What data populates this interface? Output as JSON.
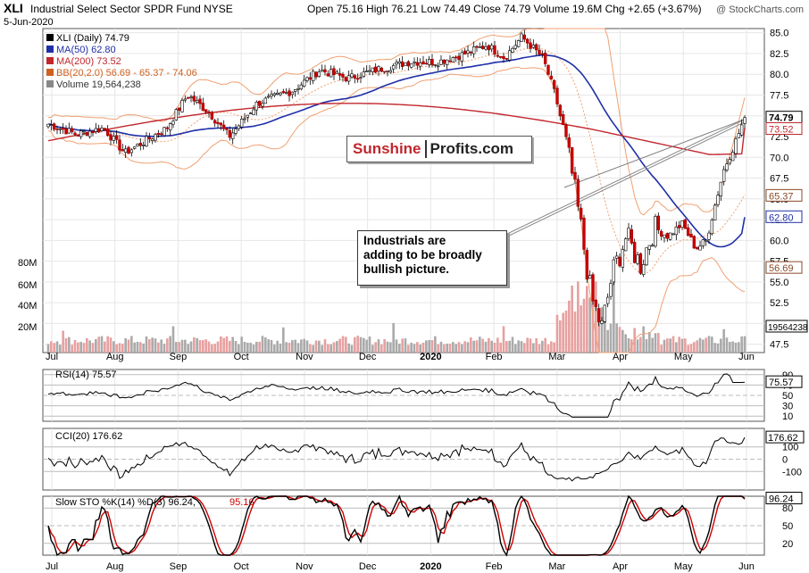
{
  "header": {
    "symbol": "XLI",
    "name": "Industrial Select Sector SPDR Fund",
    "exchange": "NYSE",
    "date": "5-Jun-2020",
    "quote": "Open 75.16  High 76.21  Low 74.49  Close 74.79  Volume 19.6M  Chg +2.65 (+3.67%)",
    "copyright": "@ StockCharts.com"
  },
  "legend": {
    "xli": "XLI (Daily) 74.79",
    "ma50": "MA(50) 62.80",
    "ma200": "MA(200) 73.52",
    "bb": "BB(20,2.0) 56.69 - 65.37 - 74.06",
    "volume": "Volume 19,564,238"
  },
  "brand": {
    "part1": "Sunshine",
    "part2": "Profits.com"
  },
  "annotation": {
    "line1": "Industrials are",
    "line2": "adding to be broadly",
    "line3": "bullish picture."
  },
  "colors": {
    "up": "#ffffff",
    "down": "#cc0000",
    "ma50": "#1f2fa8",
    "ma200": "#c1272d",
    "bb": "#f0a070",
    "vol_up": "#aaaaaa",
    "vol_down": "#e8a0a0",
    "rsi_fill_high": "#3c8a3c",
    "cci_fill_low": "#8a4a4a",
    "sto_k": "#000000",
    "sto_d": "#cc0000"
  },
  "chart_data": [
    {
      "type": "candlestick",
      "title": "XLI Industrial Select Sector SPDR Fund NYSE",
      "x_labels": [
        "Jul",
        "Aug",
        "Sep",
        "Oct",
        "Nov",
        "Dec",
        "2020",
        "Feb",
        "Mar",
        "Apr",
        "May",
        "Jun"
      ],
      "y_ticks": [
        47.5,
        50.0,
        52.5,
        55.0,
        57.5,
        60.0,
        62.5,
        65.0,
        67.5,
        70.0,
        72.5,
        75.0,
        77.5,
        80.0,
        82.5,
        85.0
      ],
      "ylim": [
        46.5,
        85.5
      ],
      "volume_ticks": [
        "20M",
        "40M",
        "60M",
        "80M"
      ],
      "price_keypoints": [
        {
          "x": 0,
          "y": 74.0
        },
        {
          "x": 0.04,
          "y": 72.8
        },
        {
          "x": 0.08,
          "y": 73.5
        },
        {
          "x": 0.11,
          "y": 70.5
        },
        {
          "x": 0.14,
          "y": 72.0
        },
        {
          "x": 0.17,
          "y": 73.5
        },
        {
          "x": 0.2,
          "y": 77.5
        },
        {
          "x": 0.23,
          "y": 75.5
        },
        {
          "x": 0.26,
          "y": 72.5
        },
        {
          "x": 0.3,
          "y": 76.5
        },
        {
          "x": 0.35,
          "y": 78.0
        },
        {
          "x": 0.39,
          "y": 80.5
        },
        {
          "x": 0.43,
          "y": 79.5
        },
        {
          "x": 0.47,
          "y": 80.5
        },
        {
          "x": 0.52,
          "y": 81.5
        },
        {
          "x": 0.56,
          "y": 81.5
        },
        {
          "x": 0.6,
          "y": 82.5
        },
        {
          "x": 0.63,
          "y": 83.5
        },
        {
          "x": 0.655,
          "y": 82.0
        },
        {
          "x": 0.68,
          "y": 84.5
        },
        {
          "x": 0.71,
          "y": 82.0
        },
        {
          "x": 0.73,
          "y": 77.0
        },
        {
          "x": 0.75,
          "y": 69.0
        },
        {
          "x": 0.765,
          "y": 61.5
        },
        {
          "x": 0.78,
          "y": 53.0
        },
        {
          "x": 0.795,
          "y": 49.5
        },
        {
          "x": 0.81,
          "y": 56.0
        },
        {
          "x": 0.83,
          "y": 60.5
        },
        {
          "x": 0.85,
          "y": 57.0
        },
        {
          "x": 0.87,
          "y": 61.5
        },
        {
          "x": 0.89,
          "y": 60.5
        },
        {
          "x": 0.91,
          "y": 62.0
        },
        {
          "x": 0.93,
          "y": 59.0
        },
        {
          "x": 0.945,
          "y": 60.0
        },
        {
          "x": 0.955,
          "y": 63.5
        },
        {
          "x": 0.97,
          "y": 68.5
        },
        {
          "x": 0.985,
          "y": 71.5
        },
        {
          "x": 1.0,
          "y": 74.79
        }
      ],
      "last_values": {
        "close": "74.79",
        "ma200": "73.52",
        "bb_mid": "65.37",
        "ma50": "62.80",
        "bb_low": "56.69",
        "volume": "19564238"
      }
    },
    {
      "type": "line",
      "name": "RSI(14)",
      "label": "RSI(14) 75.57",
      "y_ticks": [
        "90",
        "70",
        "50",
        "30",
        "10"
      ],
      "last": "75.57"
    },
    {
      "type": "line",
      "name": "CCI(20)",
      "label": "CCI(20) 176.62",
      "y_ticks": [
        "100",
        "0",
        "-100"
      ],
      "last": "176.62"
    },
    {
      "type": "line",
      "name": "Slow STO",
      "label_k": "Slow STO %K(14) %D(3) 96.24,",
      "label_d": "95.16",
      "y_ticks": [
        "80",
        "50",
        "20"
      ],
      "last": "96.24"
    }
  ]
}
